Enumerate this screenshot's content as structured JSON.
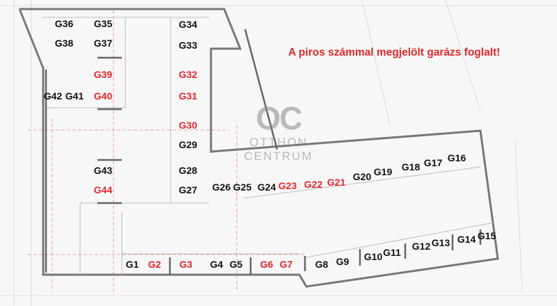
{
  "notice": "A piros számmal megjelölt garázs foglalt!",
  "logo": {
    "mark": "OC",
    "line1": "OTTHON",
    "line2": "CENTRUM"
  },
  "colors": {
    "occupied": "#e3262b",
    "free": "#111111"
  },
  "garages": [
    {
      "id": "G1",
      "occupied": false
    },
    {
      "id": "G2",
      "occupied": true
    },
    {
      "id": "G3",
      "occupied": true
    },
    {
      "id": "G4",
      "occupied": false
    },
    {
      "id": "G5",
      "occupied": false
    },
    {
      "id": "G6",
      "occupied": true
    },
    {
      "id": "G7",
      "occupied": true
    },
    {
      "id": "G8",
      "occupied": false
    },
    {
      "id": "G9",
      "occupied": false
    },
    {
      "id": "G10",
      "occupied": false
    },
    {
      "id": "G11",
      "occupied": false
    },
    {
      "id": "G12",
      "occupied": false
    },
    {
      "id": "G13",
      "occupied": false
    },
    {
      "id": "G14",
      "occupied": false
    },
    {
      "id": "G15",
      "occupied": false
    },
    {
      "id": "G16",
      "occupied": false
    },
    {
      "id": "G17",
      "occupied": false
    },
    {
      "id": "G18",
      "occupied": false
    },
    {
      "id": "G19",
      "occupied": false
    },
    {
      "id": "G20",
      "occupied": false
    },
    {
      "id": "G21",
      "occupied": true
    },
    {
      "id": "G22",
      "occupied": true
    },
    {
      "id": "G23",
      "occupied": true
    },
    {
      "id": "G24",
      "occupied": false
    },
    {
      "id": "G25",
      "occupied": false
    },
    {
      "id": "G26",
      "occupied": false
    },
    {
      "id": "G27",
      "occupied": false
    },
    {
      "id": "G28",
      "occupied": false
    },
    {
      "id": "G29",
      "occupied": false
    },
    {
      "id": "G30",
      "occupied": true
    },
    {
      "id": "G31",
      "occupied": true
    },
    {
      "id": "G32",
      "occupied": true
    },
    {
      "id": "G33",
      "occupied": false
    },
    {
      "id": "G34",
      "occupied": false
    },
    {
      "id": "G35",
      "occupied": false
    },
    {
      "id": "G36",
      "occupied": false
    },
    {
      "id": "G37",
      "occupied": false
    },
    {
      "id": "G38",
      "occupied": false
    },
    {
      "id": "G39",
      "occupied": true
    },
    {
      "id": "G40",
      "occupied": true
    },
    {
      "id": "G41",
      "occupied": false
    },
    {
      "id": "G42",
      "occupied": false
    },
    {
      "id": "G43",
      "occupied": false
    },
    {
      "id": "G44",
      "occupied": true
    }
  ]
}
